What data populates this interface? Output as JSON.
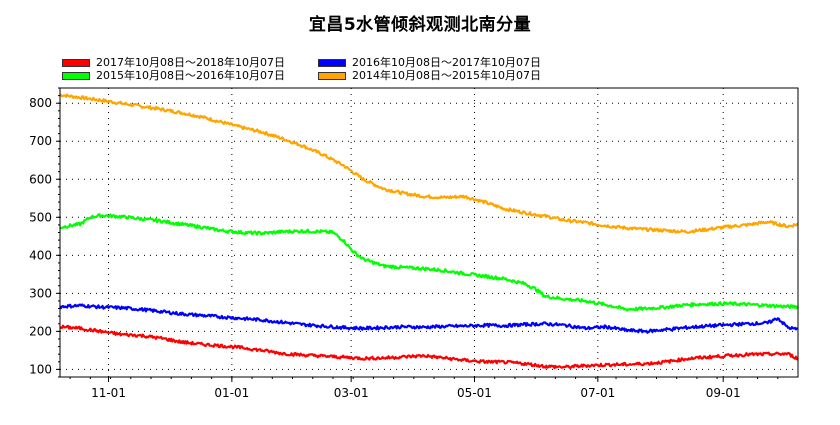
{
  "title": "宜昌5水管倾斜观测北南分量",
  "legend": [
    {
      "label": "2017年10月08日～2018年10月07日",
      "color": "#ff0000"
    },
    {
      "label": "2016年10月08日～2017年10月07日",
      "color": "#0000ff"
    },
    {
      "label": "2015年10月08日～2016年10月07日",
      "color": "#00ff00"
    },
    {
      "label": "2014年10月08日～2015年10月07日",
      "color": "#ffa500"
    }
  ],
  "chart_data": {
    "type": "line",
    "title": "宜昌5水管倾斜观测北南分量",
    "xlabel": "",
    "ylabel": "",
    "x_ticks": [
      "11-01",
      "01-01",
      "03-01",
      "05-01",
      "07-01",
      "09-01"
    ],
    "x_tick_days": [
      24,
      85,
      144,
      205,
      266,
      328
    ],
    "x_range_days": [
      0,
      365
    ],
    "xlim": [
      "10-08",
      "10-07"
    ],
    "y_ticks": [
      100,
      200,
      300,
      400,
      500,
      600,
      700,
      800
    ],
    "ylim": [
      80,
      840
    ],
    "grid": true,
    "legend_position": "top",
    "series": [
      {
        "name": "2017年10月08日～2018年10月07日",
        "color": "#ff0000",
        "days": [
          0,
          10,
          20,
          30,
          40,
          50,
          60,
          70,
          80,
          90,
          100,
          110,
          120,
          130,
          140,
          150,
          160,
          170,
          180,
          190,
          200,
          210,
          220,
          230,
          240,
          250,
          260,
          270,
          280,
          290,
          300,
          310,
          320,
          330,
          340,
          350,
          360,
          365
        ],
        "values": [
          212,
          208,
          200,
          192,
          189,
          182,
          172,
          166,
          162,
          157,
          150,
          142,
          138,
          135,
          132,
          129,
          130,
          133,
          136,
          130,
          124,
          120,
          119,
          115,
          108,
          106,
          110,
          112,
          113,
          115,
          120,
          128,
          132,
          136,
          139,
          140,
          141,
          128
        ]
      },
      {
        "name": "2016年10月08日～2017年10月07日",
        "color": "#0000ff",
        "days": [
          0,
          10,
          20,
          30,
          40,
          50,
          60,
          70,
          80,
          90,
          100,
          110,
          120,
          130,
          140,
          150,
          160,
          170,
          180,
          190,
          200,
          210,
          220,
          230,
          240,
          250,
          260,
          270,
          280,
          290,
          300,
          310,
          320,
          330,
          340,
          350,
          355,
          360,
          365
        ],
        "values": [
          265,
          268,
          264,
          262,
          258,
          252,
          246,
          242,
          238,
          234,
          230,
          224,
          218,
          214,
          210,
          208,
          210,
          212,
          211,
          213,
          214,
          216,
          215,
          218,
          220,
          216,
          208,
          212,
          203,
          200,
          205,
          210,
          214,
          217,
          220,
          222,
          235,
          210,
          205
        ]
      },
      {
        "name": "2015年10月08日～2016年10月07日",
        "color": "#00ff00",
        "days": [
          0,
          5,
          10,
          15,
          20,
          30,
          40,
          50,
          60,
          70,
          80,
          90,
          100,
          110,
          120,
          130,
          135,
          140,
          145,
          150,
          160,
          170,
          180,
          190,
          200,
          210,
          220,
          230,
          235,
          240,
          250,
          260,
          270,
          280,
          290,
          300,
          310,
          320,
          330,
          340,
          350,
          360,
          365
        ],
        "values": [
          473,
          478,
          482,
          500,
          505,
          502,
          496,
          490,
          482,
          474,
          465,
          460,
          458,
          462,
          464,
          462,
          460,
          440,
          410,
          390,
          372,
          368,
          365,
          360,
          352,
          345,
          338,
          325,
          312,
          292,
          285,
          280,
          270,
          258,
          260,
          264,
          270,
          272,
          273,
          271,
          268,
          265,
          265
        ]
      },
      {
        "name": "2014年10月08日～2015年10月07日",
        "color": "#ffa500",
        "days": [
          0,
          10,
          20,
          30,
          40,
          50,
          60,
          70,
          80,
          90,
          100,
          110,
          120,
          130,
          140,
          150,
          160,
          170,
          180,
          190,
          200,
          210,
          220,
          230,
          240,
          250,
          260,
          270,
          280,
          290,
          300,
          310,
          320,
          330,
          340,
          350,
          360,
          365
        ],
        "values": [
          822,
          815,
          808,
          800,
          792,
          784,
          775,
          764,
          750,
          736,
          724,
          707,
          688,
          665,
          637,
          600,
          575,
          563,
          555,
          552,
          555,
          540,
          522,
          512,
          503,
          492,
          486,
          478,
          472,
          468,
          465,
          462,
          468,
          475,
          480,
          488,
          476,
          482
        ]
      }
    ]
  }
}
